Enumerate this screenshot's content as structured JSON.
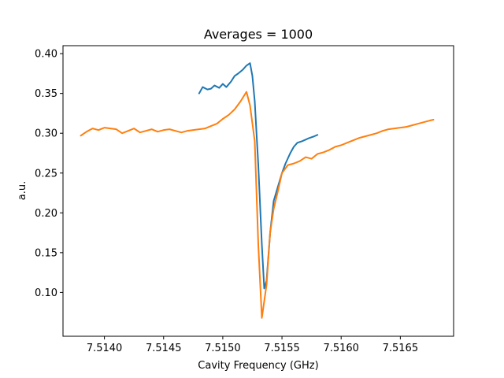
{
  "chart_data": {
    "type": "line",
    "title": "Averages = 1000",
    "xlabel": "Cavity Frequency (GHz)",
    "ylabel": "a.u.",
    "xlim": [
      7.51365,
      7.51695
    ],
    "ylim": [
      0.045,
      0.41
    ],
    "xticks": [
      7.514,
      7.5145,
      7.515,
      7.5155,
      7.516,
      7.5165
    ],
    "xtick_labels": [
      "7.5140",
      "7.5145",
      "7.5150",
      "7.5155",
      "7.5160",
      "7.5165"
    ],
    "yticks": [
      0.1,
      0.15,
      0.2,
      0.25,
      0.3,
      0.35,
      0.4
    ],
    "ytick_labels": [
      "0.10",
      "0.15",
      "0.20",
      "0.25",
      "0.30",
      "0.35",
      "0.40"
    ],
    "grid": false,
    "series": [
      {
        "color": "#1f77b4",
        "x": [
          7.5148,
          7.51483,
          7.51487,
          7.5149,
          7.51493,
          7.51497,
          7.515,
          7.51503,
          7.51507,
          7.5151,
          7.51513,
          7.51517,
          7.5152,
          7.51523,
          7.51525,
          7.51527,
          7.5153,
          7.51533,
          7.51535,
          7.51537,
          7.5154,
          7.51543,
          7.51547,
          7.5155,
          7.51553,
          7.51557,
          7.5156,
          7.51563,
          7.51567,
          7.5157,
          7.51573,
          7.51577,
          7.5158
        ],
        "y": [
          0.35,
          0.358,
          0.355,
          0.356,
          0.36,
          0.357,
          0.362,
          0.358,
          0.365,
          0.372,
          0.375,
          0.38,
          0.385,
          0.388,
          0.372,
          0.34,
          0.26,
          0.16,
          0.105,
          0.115,
          0.175,
          0.215,
          0.235,
          0.25,
          0.262,
          0.275,
          0.283,
          0.288,
          0.29,
          0.292,
          0.294,
          0.296,
          0.298
        ]
      },
      {
        "color": "#ff7f0e",
        "x": [
          7.5138,
          7.51385,
          7.5139,
          7.51395,
          7.514,
          7.51405,
          7.5141,
          7.51415,
          7.5142,
          7.51425,
          7.5143,
          7.51435,
          7.5144,
          7.51445,
          7.5145,
          7.51455,
          7.5146,
          7.51465,
          7.5147,
          7.51475,
          7.5148,
          7.51485,
          7.5149,
          7.51495,
          7.515,
          7.51505,
          7.5151,
          7.51515,
          7.5152,
          7.51523,
          7.51527,
          7.5153,
          7.51533,
          7.51537,
          7.5154,
          7.51543,
          7.51547,
          7.5155,
          7.51555,
          7.5156,
          7.51565,
          7.5157,
          7.51575,
          7.5158,
          7.51585,
          7.5159,
          7.51595,
          7.516,
          7.51605,
          7.5161,
          7.51615,
          7.5162,
          7.51625,
          7.5163,
          7.51635,
          7.5164,
          7.51645,
          7.5165,
          7.51655,
          7.5166,
          7.51665,
          7.5167,
          7.51675,
          7.51678
        ],
        "y": [
          0.297,
          0.302,
          0.306,
          0.304,
          0.307,
          0.306,
          0.305,
          0.3,
          0.303,
          0.306,
          0.301,
          0.303,
          0.305,
          0.302,
          0.304,
          0.305,
          0.303,
          0.301,
          0.303,
          0.304,
          0.305,
          0.306,
          0.309,
          0.312,
          0.318,
          0.323,
          0.33,
          0.34,
          0.352,
          0.335,
          0.29,
          0.16,
          0.068,
          0.11,
          0.175,
          0.205,
          0.23,
          0.25,
          0.26,
          0.262,
          0.265,
          0.27,
          0.268,
          0.274,
          0.276,
          0.279,
          0.283,
          0.285,
          0.288,
          0.291,
          0.294,
          0.296,
          0.298,
          0.3,
          0.303,
          0.305,
          0.306,
          0.307,
          0.308,
          0.31,
          0.312,
          0.314,
          0.316,
          0.317
        ]
      }
    ]
  }
}
